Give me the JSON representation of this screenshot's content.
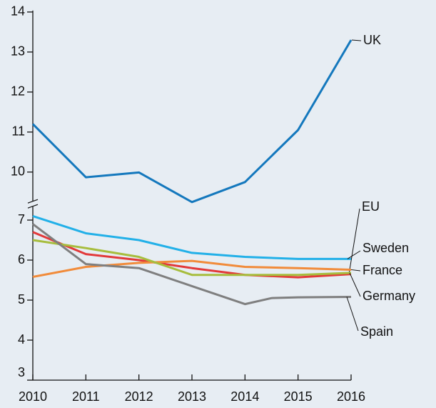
{
  "chart_data": {
    "type": "line",
    "xlim": [
      2010,
      2016
    ],
    "xticks": [
      2010,
      2011,
      2012,
      2013,
      2014,
      2015,
      2016
    ],
    "ylim": [
      3,
      14
    ],
    "yticks": [
      3,
      4,
      5,
      6,
      7,
      10,
      11,
      12,
      13,
      14
    ],
    "ybreak": [
      7.3,
      9.1
    ],
    "series": [
      {
        "name": "UK",
        "color": "#1478bd",
        "x": [
          2010,
          2011,
          2012,
          2013,
          2014,
          2015,
          2016
        ],
        "values": [
          11.2,
          9.87,
          9.99,
          9.25,
          9.75,
          11.05,
          13.3
        ]
      },
      {
        "name": "EU",
        "color": "#e2393a",
        "x": [
          2010,
          2011,
          2012,
          2013,
          2014,
          2015,
          2016
        ],
        "values": [
          6.7,
          6.15,
          6.0,
          5.8,
          5.63,
          5.57,
          5.65
        ]
      },
      {
        "name": "Sweden",
        "color": "#22b0e8",
        "x": [
          2010,
          2011,
          2012,
          2013,
          2014,
          2015,
          2016
        ],
        "values": [
          7.1,
          6.67,
          6.5,
          6.18,
          6.08,
          6.03,
          6.03
        ]
      },
      {
        "name": "France",
        "color": "#f18b3a",
        "x": [
          2010,
          2011,
          2012,
          2013,
          2014,
          2015,
          2016
        ],
        "values": [
          5.58,
          5.83,
          5.93,
          5.98,
          5.83,
          5.8,
          5.76
        ]
      },
      {
        "name": "Germany",
        "color": "#a7bd3d",
        "x": [
          2010,
          2011,
          2012,
          2013,
          2014,
          2015,
          2016
        ],
        "values": [
          6.5,
          6.3,
          6.08,
          5.63,
          5.63,
          5.63,
          5.68
        ]
      },
      {
        "name": "Spain",
        "color": "#7f7f7f",
        "x": [
          2010,
          2011,
          2012,
          2013,
          2014,
          2014.5,
          2015,
          2016
        ],
        "values": [
          6.9,
          5.9,
          5.8,
          5.35,
          4.9,
          5.05,
          5.07,
          5.08
        ]
      }
    ]
  }
}
